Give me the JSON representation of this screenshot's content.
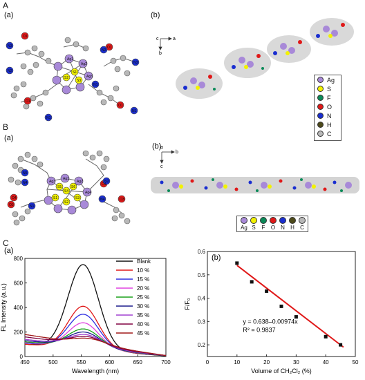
{
  "panels": {
    "A": "A",
    "A_a": "(a)",
    "A_b": "(b)",
    "B": "B",
    "B_a": "(a)",
    "B_b": "(b)",
    "C": "C",
    "C_a": "(a)",
    "C_b": "(b)"
  },
  "axes_A": {
    "c": "c",
    "a": "a",
    "b": "b"
  },
  "axes_B": {
    "a": "a",
    "b": "b",
    "c": "c"
  },
  "atom_legend": [
    {
      "label": "Ag",
      "color": "#a889d8"
    },
    {
      "label": "S",
      "color": "#f2f200"
    },
    {
      "label": "F",
      "color": "#0a8a58"
    },
    {
      "label": "O",
      "color": "#e01818"
    },
    {
      "label": "N",
      "color": "#1a2ed0"
    },
    {
      "label": "H",
      "color": "#4d4a1a"
    },
    {
      "label": "C",
      "color": "#b8b8b8"
    }
  ],
  "structure_A_labels": {
    "O1": "O1",
    "O1b": "O1",
    "O1c": "O1",
    "O1d": "O1",
    "N1": "N1",
    "N2": "N2",
    "N3": "N3",
    "N1b": "N1",
    "N2b": "N2",
    "N3b": "N3",
    "Ag1": "Ag1",
    "Ag2": "Ag2",
    "Ag3": "Ag3",
    "S1": "S1",
    "S2": "S2",
    "S3": "S3"
  },
  "structure_B_labels": {
    "N1": "N1",
    "N2": "N2",
    "N3": "N3",
    "N4": "N4",
    "N5": "N5",
    "O1": "O1",
    "O2": "O2",
    "O3": "O3",
    "O4": "O4",
    "Ag1": "Ag1",
    "Ag2": "Ag2",
    "Ag3": "Ag3",
    "Ag4": "Ag4",
    "S1": "S1",
    "S2": "S2",
    "S3": "S3",
    "S4": "S4",
    "S5": "S5",
    "S6": "S6"
  },
  "chart_data": [
    {
      "type": "line",
      "xlabel": "Wavelength (nm)",
      "ylabel": "FL Intensity (a.u.)",
      "xlim": [
        450,
        700
      ],
      "ylim": [
        0,
        800
      ],
      "xticks": [
        450,
        500,
        550,
        600,
        650,
        700
      ],
      "yticks": [
        0,
        200,
        400,
        600,
        800
      ],
      "legend_position": "top-right",
      "series": [
        {
          "name": "Blank",
          "color": "#111111",
          "peak": 750,
          "base_left": 100,
          "base_right": 5,
          "width": 38
        },
        {
          "name": "10 %",
          "color": "#e01818",
          "peak": 410,
          "base_left": 100,
          "base_right": 8,
          "width": 38
        },
        {
          "name": "15 %",
          "color": "#2d2de0",
          "peak": 345,
          "base_left": 110,
          "base_right": 8,
          "width": 38
        },
        {
          "name": "20 %",
          "color": "#e040e0",
          "peak": 275,
          "base_left": 115,
          "base_right": 8,
          "width": 38
        },
        {
          "name": "25 %",
          "color": "#18a018",
          "peak": 225,
          "base_left": 120,
          "base_right": 8,
          "width": 40
        },
        {
          "name": "30 %",
          "color": "#1a1a8c",
          "peak": 200,
          "base_left": 130,
          "base_right": 8,
          "width": 40
        },
        {
          "name": "35 %",
          "color": "#a040d0",
          "peak": 180,
          "base_left": 140,
          "base_right": 8,
          "width": 42
        },
        {
          "name": "40 %",
          "color": "#800040",
          "peak": 165,
          "base_left": 160,
          "base_right": 8,
          "width": 42
        },
        {
          "name": "45 %",
          "color": "#a01818",
          "peak": 150,
          "base_left": 180,
          "base_right": 8,
          "width": 44
        }
      ]
    },
    {
      "type": "scatter",
      "xlabel": "Volume of CH₂Cl₂ (%)",
      "ylabel": "F/F₀",
      "xlim": [
        0,
        50
      ],
      "ylim": [
        0.15,
        0.6
      ],
      "xticks": [
        0,
        10,
        20,
        30,
        40,
        50
      ],
      "yticks": [
        0.2,
        0.3,
        0.4,
        0.5,
        0.6
      ],
      "x": [
        10,
        15,
        20,
        25,
        30,
        40,
        45
      ],
      "y": [
        0.55,
        0.47,
        0.43,
        0.365,
        0.32,
        0.235,
        0.2
      ],
      "fit": {
        "intercept": 0.638,
        "slope": -0.00974,
        "color": "#e01818"
      },
      "annotation_eq": "y = 0.638–0.00974x",
      "annotation_r2": "R² = 0.9837"
    }
  ]
}
